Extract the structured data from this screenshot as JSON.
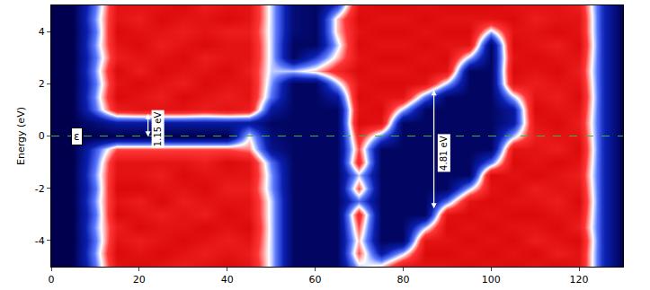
{
  "chart_data": {
    "type": "heatmap",
    "y_label": "Energy (eV)",
    "xlim": [
      0,
      130
    ],
    "ylim": [
      -5,
      5
    ],
    "xticks": [
      0,
      20,
      40,
      60,
      80,
      100,
      120
    ],
    "yticks": [
      -4,
      -2,
      0,
      2,
      4
    ],
    "zlim": [
      0,
      1
    ],
    "x": [
      0,
      5,
      10,
      15,
      20,
      25,
      30,
      35,
      40,
      45,
      50,
      55,
      60,
      65,
      70,
      75,
      80,
      85,
      90,
      95,
      100,
      105,
      110,
      115,
      120,
      125,
      130
    ],
    "y": [
      -5,
      -4.5,
      -4,
      -3.5,
      -3,
      -2.5,
      -2,
      -1.5,
      -1,
      -0.5,
      0,
      0.5,
      1,
      1.5,
      2,
      2.5,
      3,
      3.5,
      4,
      4.5,
      5
    ],
    "z_by_x": [
      [
        0,
        0,
        0,
        0,
        0,
        0,
        0,
        0,
        0,
        0,
        0,
        0,
        0,
        0,
        0,
        0,
        0,
        0,
        0,
        0,
        0
      ],
      [
        0,
        0,
        0,
        0,
        0,
        0,
        0,
        0,
        0,
        0,
        0,
        0,
        0,
        0,
        0,
        0,
        0,
        0,
        0,
        0,
        0
      ],
      [
        0.4,
        0.45,
        0.4,
        0.45,
        0.4,
        0.45,
        0.4,
        0.45,
        0.4,
        0.35,
        0,
        0.1,
        0.4,
        0.45,
        0.4,
        0.45,
        0.4,
        0.45,
        0.4,
        0.45,
        0.4
      ],
      [
        0.9,
        0.95,
        0.9,
        0.85,
        0.95,
        0.9,
        0.95,
        0.9,
        0.9,
        0.7,
        0,
        0.2,
        0.85,
        0.95,
        0.9,
        0.95,
        0.85,
        0.9,
        0.95,
        0.9,
        0.9
      ],
      [
        0.95,
        0.9,
        0.85,
        0.95,
        0.9,
        0.85,
        0.95,
        0.9,
        0.9,
        0.7,
        0,
        0.2,
        0.9,
        0.9,
        0.95,
        0.85,
        0.9,
        0.95,
        0.9,
        0.85,
        0.9
      ],
      [
        0.9,
        0.95,
        0.9,
        0.9,
        0.85,
        0.95,
        0.9,
        0.85,
        0.9,
        0.7,
        0,
        0.2,
        0.9,
        0.85,
        0.9,
        0.95,
        0.9,
        0.85,
        0.9,
        0.95,
        0.9
      ],
      [
        0.85,
        0.9,
        0.95,
        0.9,
        0.9,
        0.85,
        0.9,
        0.95,
        0.9,
        0.7,
        0,
        0.2,
        0.9,
        0.95,
        0.85,
        0.9,
        0.95,
        0.9,
        0.85,
        0.9,
        0.95
      ],
      [
        0.9,
        0.85,
        0.9,
        0.95,
        0.85,
        0.9,
        0.95,
        0.9,
        0.85,
        0.7,
        0,
        0.2,
        0.85,
        0.9,
        0.95,
        0.9,
        0.85,
        0.95,
        0.9,
        0.9,
        0.85
      ],
      [
        0.95,
        0.9,
        0.85,
        0.9,
        0.95,
        0.9,
        0.85,
        0.9,
        0.95,
        0.7,
        0,
        0.2,
        0.9,
        0.85,
        0.9,
        0.95,
        0.9,
        0.9,
        0.85,
        0.95,
        0.9
      ],
      [
        0.9,
        0.85,
        0.9,
        0.95,
        0.9,
        0.9,
        0.85,
        0.9,
        0.9,
        0.65,
        0.55,
        0.2,
        0.85,
        0.9,
        0.9,
        0.85,
        0.9,
        0.9,
        0.85,
        0.9,
        0.9
      ],
      [
        0.5,
        0.5,
        0.5,
        0.5,
        0.5,
        0.5,
        0.45,
        0.45,
        0.4,
        0.15,
        0.1,
        0.05,
        0.2,
        0.4,
        0.45,
        0.5,
        0.5,
        0.5,
        0.5,
        0.5,
        0.5
      ],
      [
        0.05,
        0.05,
        0.05,
        0.05,
        0.05,
        0.05,
        0.05,
        0.05,
        0.05,
        0.05,
        0.05,
        0.05,
        0.05,
        0.05,
        0.05,
        0.5,
        0.05,
        0.05,
        0.1,
        0.1,
        0.1
      ],
      [
        0.05,
        0.05,
        0.05,
        0.05,
        0.05,
        0.05,
        0.05,
        0.05,
        0.05,
        0.05,
        0.05,
        0.05,
        0.05,
        0.05,
        0.05,
        0.6,
        0.3,
        0.05,
        0.05,
        0.05,
        0.05
      ],
      [
        0.05,
        0.05,
        0.05,
        0.05,
        0.05,
        0.05,
        0.05,
        0.05,
        0.05,
        0.05,
        0.05,
        0.05,
        0.05,
        0.2,
        0.5,
        0.8,
        0.6,
        0.5,
        0.6,
        0.6,
        0.3
      ],
      [
        0.5,
        0.7,
        0.6,
        0.7,
        0.8,
        0.4,
        0.7,
        0.5,
        0.8,
        0.7,
        0.8,
        0.95,
        0.9,
        0.95,
        0.9,
        0.95,
        0.9,
        0.95,
        0.9,
        0.95,
        0.9
      ],
      [
        0.6,
        0.2,
        0.05,
        0.05,
        0.05,
        0.05,
        0.05,
        0.05,
        0.05,
        0.05,
        0.4,
        0.9,
        0.95,
        0.9,
        0.95,
        0.9,
        0.95,
        0.9,
        0.95,
        0.9,
        0.95
      ],
      [
        0.9,
        0.5,
        0.05,
        0.05,
        0.05,
        0.05,
        0.05,
        0.05,
        0.05,
        0.05,
        0.05,
        0.05,
        0.5,
        0.9,
        0.95,
        0.9,
        0.95,
        0.9,
        0.95,
        0.9,
        0.95
      ],
      [
        0.9,
        0.95,
        0.9,
        0.5,
        0.05,
        0.05,
        0.05,
        0.05,
        0.05,
        0.05,
        0.05,
        0.05,
        0.05,
        0.4,
        0.9,
        0.95,
        0.9,
        0.95,
        0.9,
        0.95,
        0.9
      ],
      [
        0.9,
        0.95,
        0.9,
        0.95,
        0.9,
        0.4,
        0.05,
        0.05,
        0.05,
        0.05,
        0.05,
        0.05,
        0.05,
        0.05,
        0.5,
        0.9,
        0.95,
        0.9,
        0.95,
        0.9,
        0.95
      ],
      [
        0.95,
        0.9,
        0.95,
        0.9,
        0.95,
        0.9,
        0.5,
        0.05,
        0.05,
        0.05,
        0.05,
        0.05,
        0.05,
        0.05,
        0.05,
        0.05,
        0.5,
        0.9,
        0.95,
        0.9,
        0.95
      ],
      [
        0.9,
        0.95,
        0.9,
        0.95,
        0.9,
        0.95,
        0.9,
        0.95,
        0.4,
        0.05,
        0.05,
        0.05,
        0.05,
        0.05,
        0.05,
        0.05,
        0.05,
        0.05,
        0.5,
        0.9,
        0.95
      ],
      [
        0.95,
        0.9,
        0.95,
        0.9,
        0.95,
        0.9,
        0.95,
        0.9,
        0.95,
        0.9,
        0.5,
        0.2,
        0.2,
        0.5,
        0.9,
        0.95,
        0.9,
        0.95,
        0.9,
        0.95,
        0.9
      ],
      [
        0.9,
        0.95,
        0.85,
        0.9,
        0.95,
        0.9,
        0.85,
        0.95,
        0.9,
        0.9,
        0.85,
        0.9,
        0.95,
        0.9,
        0.85,
        0.9,
        0.95,
        0.9,
        0.9,
        0.85,
        0.9
      ],
      [
        0.95,
        0.85,
        0.9,
        0.95,
        0.9,
        0.85,
        0.9,
        0.9,
        0.95,
        0.85,
        0.9,
        0.95,
        0.9,
        0.85,
        0.9,
        0.95,
        0.9,
        0.85,
        0.95,
        0.9,
        0.9
      ],
      [
        0.9,
        0.9,
        0.95,
        0.85,
        0.9,
        0.95,
        0.9,
        0.85,
        0.9,
        0.95,
        0.9,
        0.85,
        0.9,
        0.95,
        0.9,
        0.85,
        0.9,
        0.95,
        0.9,
        0.9,
        0.85
      ],
      [
        0.3,
        0.3,
        0.3,
        0.3,
        0.3,
        0.3,
        0.3,
        0.3,
        0.3,
        0.3,
        0.3,
        0.3,
        0.3,
        0.3,
        0.3,
        0.3,
        0.3,
        0.3,
        0.3,
        0.3,
        0.3
      ],
      [
        0,
        0,
        0,
        0,
        0,
        0,
        0,
        0,
        0,
        0,
        0,
        0,
        0,
        0,
        0,
        0,
        0,
        0,
        0,
        0,
        0
      ]
    ],
    "fermi_level": {
      "label": "ε",
      "value": 0,
      "color": "#3cb043",
      "line_style": "dashed"
    },
    "annotations": [
      {
        "text": "1.15 eV",
        "x": 22,
        "y0": -0.3,
        "y1": 0.85
      },
      {
        "text": "4.81 eV",
        "x": 87,
        "y0": -3.05,
        "y1": 1.76
      }
    ]
  }
}
